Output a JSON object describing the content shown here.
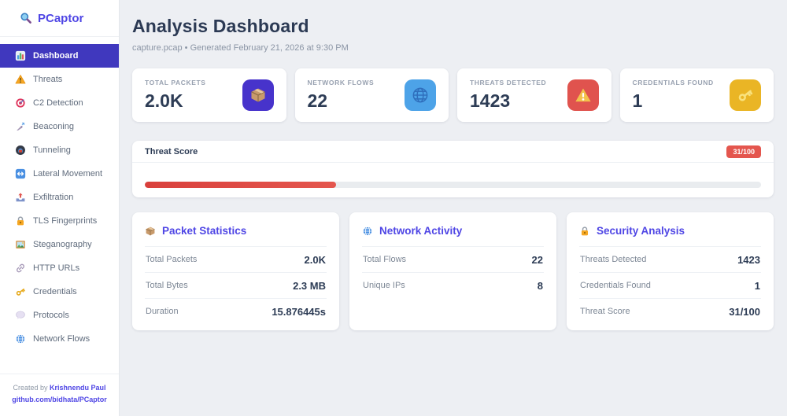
{
  "sidebar": {
    "logo_text": "PCaptor",
    "logo_icon": "magnifier-icon",
    "items": [
      {
        "label": "Dashboard",
        "icon": "bar-chart-icon",
        "active": true
      },
      {
        "label": "Threats",
        "icon": "warning-icon",
        "active": false
      },
      {
        "label": "C2 Detection",
        "icon": "target-icon",
        "active": false
      },
      {
        "label": "Beaconing",
        "icon": "satellite-icon",
        "active": false
      },
      {
        "label": "Tunneling",
        "icon": "tunnel-icon",
        "active": false
      },
      {
        "label": "Lateral Movement",
        "icon": "left-right-arrow-icon",
        "active": false
      },
      {
        "label": "Exfiltration",
        "icon": "outbox-icon",
        "active": false
      },
      {
        "label": "TLS Fingerprints",
        "icon": "lock-icon",
        "active": false
      },
      {
        "label": "Steganography",
        "icon": "picture-icon",
        "active": false
      },
      {
        "label": "HTTP URLs",
        "icon": "link-icon",
        "active": false
      },
      {
        "label": "Credentials",
        "icon": "key-icon",
        "active": false
      },
      {
        "label": "Protocols",
        "icon": "speech-icon",
        "active": false
      },
      {
        "label": "Network Flows",
        "icon": "globe-icon",
        "active": false
      }
    ],
    "footer": {
      "created_by_prefix": "Created by",
      "author": "Krishnendu Paul",
      "repo": "github.com/bidhata/PCaptor"
    }
  },
  "header": {
    "title": "Analysis Dashboard",
    "subtitle": "capture.pcap • Generated February 21, 2026 at 9:30 PM"
  },
  "stats": [
    {
      "label": "TOTAL PACKETS",
      "value": "2.0K",
      "icon": "package-icon",
      "icon_bg": "#4733cb"
    },
    {
      "label": "NETWORK FLOWS",
      "value": "22",
      "icon": "globe-outline-icon",
      "icon_bg": "#4da3e8"
    },
    {
      "label": "THREATS DETECTED",
      "value": "1423",
      "icon": "warning-stat-icon",
      "icon_bg": "#e0534e"
    },
    {
      "label": "CREDENTIALS FOUND",
      "value": "1",
      "icon": "key-stat-icon",
      "icon_bg": "#eab525"
    }
  ],
  "threat_score": {
    "label": "Threat Score",
    "badge": "31/100",
    "percent": 31
  },
  "panels": [
    {
      "title": "Packet Statistics",
      "icon": "package-icon",
      "rows": [
        {
          "label": "Total Packets",
          "value": "2.0K"
        },
        {
          "label": "Total Bytes",
          "value": "2.3 MB"
        },
        {
          "label": "Duration",
          "value": "15.876445s"
        }
      ]
    },
    {
      "title": "Network Activity",
      "icon": "globe-icon",
      "rows": [
        {
          "label": "Total Flows",
          "value": "22"
        },
        {
          "label": "Unique IPs",
          "value": "8"
        }
      ]
    },
    {
      "title": "Security Analysis",
      "icon": "lock-icon",
      "rows": [
        {
          "label": "Threats Detected",
          "value": "1423"
        },
        {
          "label": "Credentials Found",
          "value": "1"
        },
        {
          "label": "Threat Score",
          "value": "31/100"
        }
      ]
    }
  ],
  "colors": {
    "primary_active": "#4038be",
    "accent": "#4f46e5",
    "danger": "#e4564e",
    "progress_track": "#e9ecef",
    "page_background": "#edeff3"
  }
}
